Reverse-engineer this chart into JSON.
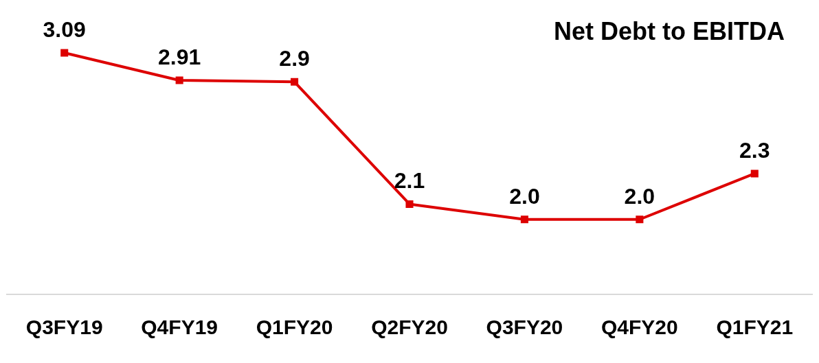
{
  "chart_data": {
    "type": "line",
    "title": "Net Debt to EBITDA",
    "categories": [
      "Q3FY19",
      "Q4FY19",
      "Q1FY20",
      "Q2FY20",
      "Q3FY20",
      "Q4FY20",
      "Q1FY21"
    ],
    "series": [
      {
        "color": "#dd0000",
        "values": [
          3.09,
          2.91,
          2.9,
          2.1,
          2.0,
          2.0,
          2.3
        ],
        "value_labels": [
          "3.09",
          "2.91",
          "2.9",
          "2.1",
          "2.0",
          "2.0",
          "2.3"
        ]
      }
    ],
    "tick_labels": "x",
    "grid": false,
    "legend": false,
    "marker": "square",
    "line_style": "solid"
  }
}
